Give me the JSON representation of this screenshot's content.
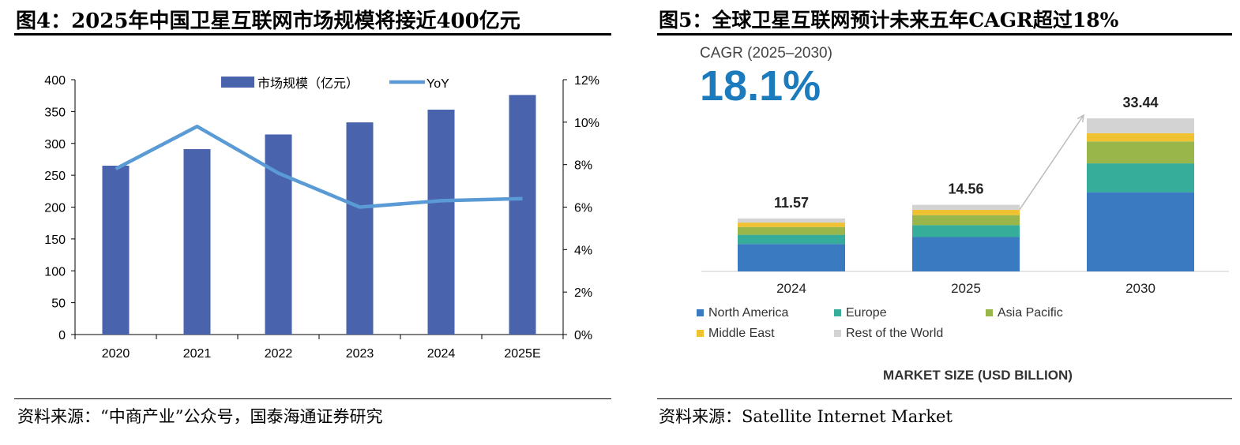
{
  "chart_data": [
    {
      "type": "bar",
      "title": "图4：2025年中国卫星互联网市场规模将接近400亿元",
      "source": "资料来源：“中商产业”公众号，国泰海通证券研究",
      "categories": [
        "2020",
        "2021",
        "2022",
        "2023",
        "2024",
        "2025E"
      ],
      "series": [
        {
          "name": "市场规模（亿元）",
          "kind": "bar",
          "axis": "left",
          "color": "#4a63ad",
          "values": [
            265,
            291,
            314,
            333,
            353,
            376
          ]
        },
        {
          "name": "YoY",
          "kind": "line",
          "axis": "right",
          "color": "#5b9bd5",
          "values": [
            7.8,
            9.8,
            7.6,
            6.0,
            6.3,
            6.4
          ]
        }
      ],
      "ylim": [
        0,
        400
      ],
      "yticks": [
        "0",
        "50",
        "100",
        "150",
        "200",
        "250",
        "300",
        "350",
        "400"
      ],
      "y2lim": [
        0,
        12
      ],
      "y2ticks": [
        "0%",
        "2%",
        "4%",
        "6%",
        "8%",
        "10%",
        "12%"
      ],
      "legend": "top-center"
    },
    {
      "type": "bar",
      "stacked": true,
      "title": "图5：全球卫星互联网预计未来五年CAGR超过18%",
      "source": "资料来源：Satellite Internet Market",
      "cagr_label": "CAGR (2025–2030)",
      "cagr_value": "18.1%",
      "xlabel": "MARKET SIZE (USD BILLION)",
      "categories": [
        "2024",
        "2025",
        "2030"
      ],
      "totals": [
        "11.57",
        "14.56",
        "33.44"
      ],
      "total_values": [
        11.57,
        14.56,
        33.44
      ],
      "series": [
        {
          "name": "North America",
          "color": "#3a7ac0",
          "values": [
            6.0,
            7.5,
            17.3
          ]
        },
        {
          "name": "Europe",
          "color": "#36ad9b",
          "values": [
            2.0,
            2.6,
            6.3
          ]
        },
        {
          "name": "Asia Pacific",
          "color": "#99b64a",
          "values": [
            1.7,
            2.2,
            4.8
          ]
        },
        {
          "name": "Middle East",
          "color": "#f0c232",
          "values": [
            0.97,
            1.16,
            1.8
          ]
        },
        {
          "name": "Rest of the World",
          "color": "#d3d3d3",
          "values": [
            0.9,
            1.1,
            3.24
          ]
        }
      ],
      "ylim": [
        0,
        40
      ],
      "legend": "bottom"
    }
  ]
}
